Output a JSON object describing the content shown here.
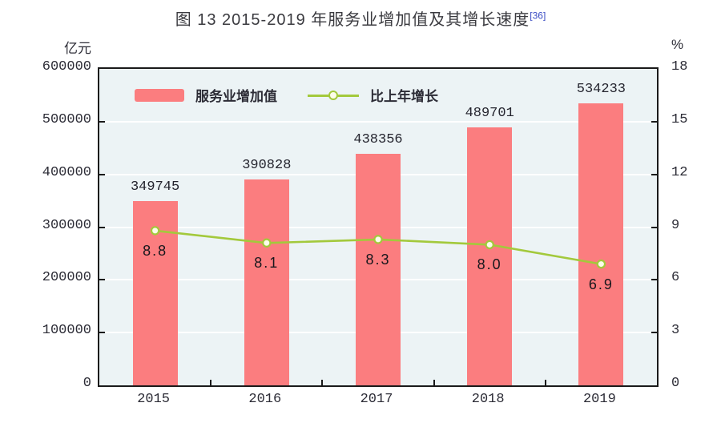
{
  "title": {
    "text": "图 13  2015-2019 年服务业增加值及其增长速度",
    "footnote_ref": "[36]",
    "footnote_color": "#3a4cc4"
  },
  "chart_data": {
    "type": "bar+line",
    "categories": [
      "2015",
      "2016",
      "2017",
      "2018",
      "2019"
    ],
    "series": [
      {
        "name": "服务业增加值",
        "type": "bar",
        "axis": "left",
        "values": [
          349745,
          390828,
          438356,
          489701,
          534233
        ],
        "labels": [
          "349745",
          "390828",
          "438356",
          "489701",
          "534233"
        ],
        "color": "#fb7d7f"
      },
      {
        "name": "比上年增长",
        "type": "line",
        "axis": "right",
        "values": [
          8.8,
          8.1,
          8.3,
          8.0,
          6.9
        ],
        "labels": [
          "8.8",
          "8.1",
          "8.3",
          "8.0",
          "6.9"
        ],
        "color": "#a3c93c",
        "marker": "circle",
        "marker_fill": "#fdfdea"
      }
    ],
    "left_axis": {
      "unit": "亿元",
      "min": 0,
      "max": 600000,
      "tick_labels": [
        "600000",
        "500000",
        "400000",
        "300000",
        "200000",
        "100000",
        "0"
      ]
    },
    "right_axis": {
      "unit": "%",
      "min": 0,
      "max": 18,
      "tick_labels": [
        "18",
        "15",
        "12",
        "9",
        "6",
        "3",
        "0"
      ]
    },
    "grid": true,
    "legend_position": "top-left-inside",
    "plot_background": "#ecf3f5",
    "gridline_color": "#ffffff",
    "axis_color": "#1a1a1a"
  }
}
